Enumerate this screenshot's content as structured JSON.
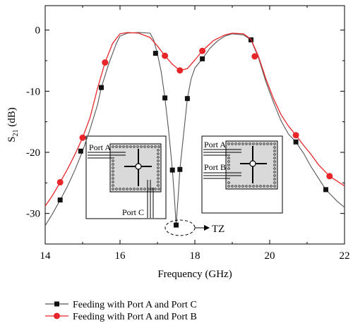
{
  "chart_data": {
    "type": "line",
    "title": "",
    "xlabel": "Frequency (GHz)",
    "ylabel": "S21 (dB)",
    "ylabel_main": "S",
    "ylabel_sub": "21",
    "ylabel_unit": " (dB)",
    "xlim": [
      14,
      22
    ],
    "ylim": [
      -35,
      4
    ],
    "xticks": [
      14,
      16,
      18,
      20,
      22
    ],
    "yticks": [
      0,
      -10,
      -20,
      -30
    ],
    "grid": false,
    "legend_position": "bottom",
    "series": [
      {
        "name": "Feeding with Port A and Port C",
        "color": "#555555",
        "marker": "square",
        "marker_color": "#111111",
        "curve": [
          [
            14.0,
            -32.0
          ],
          [
            14.2,
            -30.0
          ],
          [
            14.4,
            -27.8
          ],
          [
            14.6,
            -25.5
          ],
          [
            14.8,
            -22.8
          ],
          [
            15.0,
            -19.8
          ],
          [
            15.2,
            -16.2
          ],
          [
            15.4,
            -12.2
          ],
          [
            15.5,
            -9.4
          ],
          [
            15.7,
            -5.5
          ],
          [
            15.9,
            -2.2
          ],
          [
            16.0,
            -1.0
          ],
          [
            16.2,
            -0.5
          ],
          [
            16.5,
            -0.4
          ],
          [
            16.8,
            -0.5
          ],
          [
            16.9,
            -1.6
          ],
          [
            17.0,
            -3.9
          ],
          [
            17.1,
            -6.8
          ],
          [
            17.2,
            -11.1
          ],
          [
            17.3,
            -16.5
          ],
          [
            17.4,
            -22.9
          ],
          [
            17.45,
            -27.0
          ],
          [
            17.5,
            -31.9
          ],
          [
            17.55,
            -27.5
          ],
          [
            17.6,
            -22.8
          ],
          [
            17.7,
            -17.0
          ],
          [
            17.8,
            -11.2
          ],
          [
            17.9,
            -8.0
          ],
          [
            18.0,
            -6.2
          ],
          [
            18.2,
            -4.7
          ],
          [
            18.4,
            -3.0
          ],
          [
            18.6,
            -1.8
          ],
          [
            18.8,
            -1.0
          ],
          [
            19.0,
            -0.6
          ],
          [
            19.3,
            -0.8
          ],
          [
            19.5,
            -1.6
          ],
          [
            19.7,
            -4.5
          ],
          [
            19.9,
            -8.5
          ],
          [
            20.1,
            -11.8
          ],
          [
            20.3,
            -14.8
          ],
          [
            20.5,
            -17.0
          ],
          [
            20.7,
            -18.3
          ],
          [
            20.9,
            -20.1
          ],
          [
            21.1,
            -22.3
          ],
          [
            21.3,
            -24.2
          ],
          [
            21.5,
            -26.1
          ],
          [
            21.8,
            -28.0
          ],
          [
            22.0,
            -29.0
          ]
        ],
        "markers": [
          [
            14.4,
            -27.8
          ],
          [
            14.95,
            -19.8
          ],
          [
            15.5,
            -9.4
          ],
          [
            16.95,
            -3.8
          ],
          [
            17.2,
            -11.1
          ],
          [
            17.4,
            -22.9
          ],
          [
            17.5,
            -31.9
          ],
          [
            17.6,
            -22.8
          ],
          [
            17.8,
            -11.2
          ],
          [
            18.2,
            -4.7
          ],
          [
            19.5,
            -1.6
          ],
          [
            20.7,
            -18.3
          ],
          [
            21.5,
            -26.1
          ]
        ]
      },
      {
        "name": "Feeding with Port A and Port B",
        "color": "#e8262a",
        "marker": "circle",
        "marker_color": "#e8262a",
        "curve": [
          [
            14.0,
            -28.8
          ],
          [
            14.2,
            -27.0
          ],
          [
            14.4,
            -24.9
          ],
          [
            14.6,
            -22.7
          ],
          [
            14.8,
            -20.3
          ],
          [
            15.0,
            -17.6
          ],
          [
            15.2,
            -14.3
          ],
          [
            15.4,
            -9.5
          ],
          [
            15.6,
            -5.3
          ],
          [
            15.8,
            -2.2
          ],
          [
            16.0,
            -0.6
          ],
          [
            16.2,
            -0.4
          ],
          [
            16.5,
            -0.5
          ],
          [
            16.8,
            -1.2
          ],
          [
            17.0,
            -2.6
          ],
          [
            17.2,
            -4.2
          ],
          [
            17.4,
            -5.6
          ],
          [
            17.6,
            -6.6
          ],
          [
            17.8,
            -6.3
          ],
          [
            18.0,
            -4.9
          ],
          [
            18.2,
            -3.4
          ],
          [
            18.5,
            -1.7
          ],
          [
            18.8,
            -0.8
          ],
          [
            19.0,
            -0.5
          ],
          [
            19.3,
            -0.6
          ],
          [
            19.5,
            -1.5
          ],
          [
            19.7,
            -4.3
          ],
          [
            19.9,
            -8.0
          ],
          [
            20.1,
            -11.2
          ],
          [
            20.3,
            -13.8
          ],
          [
            20.5,
            -15.7
          ],
          [
            20.7,
            -17.2
          ],
          [
            20.9,
            -18.8
          ],
          [
            21.1,
            -20.3
          ],
          [
            21.3,
            -22.0
          ],
          [
            21.6,
            -23.9
          ],
          [
            22.0,
            -25.5
          ]
        ],
        "markers": [
          [
            14.4,
            -24.9
          ],
          [
            15.0,
            -17.6
          ],
          [
            15.6,
            -5.3
          ],
          [
            17.2,
            -4.2
          ],
          [
            17.6,
            -6.6
          ],
          [
            18.2,
            -3.4
          ],
          [
            19.6,
            -4.3
          ],
          [
            20.7,
            -17.2
          ],
          [
            21.6,
            -23.9
          ]
        ]
      }
    ],
    "annotations": {
      "transmission_zero": "TZ",
      "inset_left_ports": [
        "Port A",
        "Port C"
      ],
      "inset_right_ports": [
        "Port A",
        "Port B"
      ]
    }
  }
}
